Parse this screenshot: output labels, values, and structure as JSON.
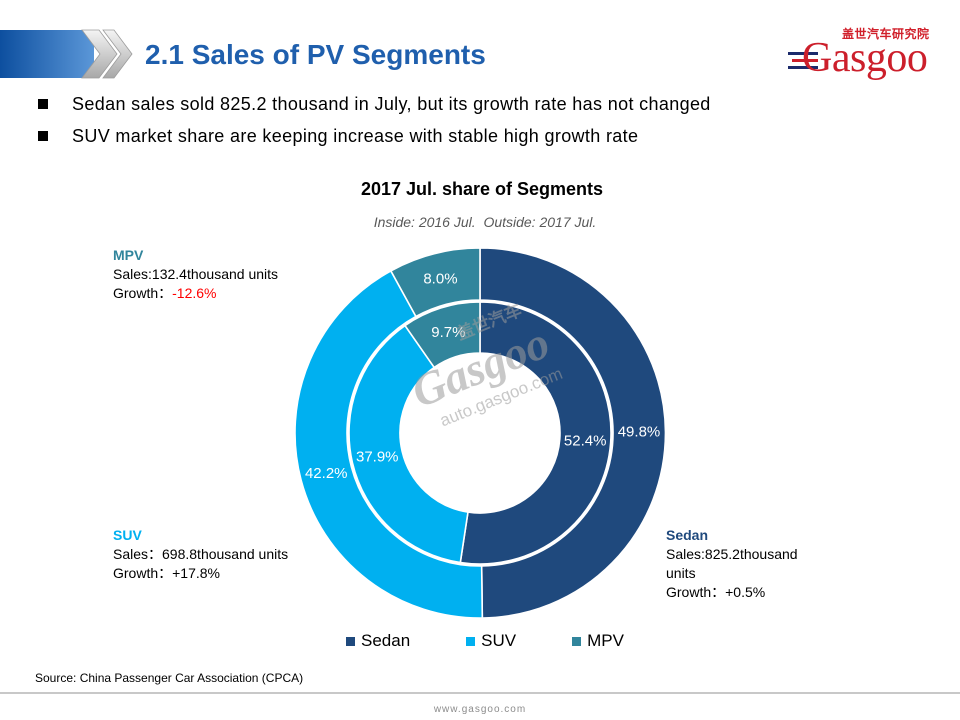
{
  "header": {
    "title": "2.1 Sales of PV Segments"
  },
  "logo": {
    "chinese": "盖世汽车研究院",
    "wordmark": "Gasgoo"
  },
  "bullets": [
    "Sedan sales sold 825.2 thousand in July, but its growth rate has not changed",
    "SUV market share are keeping increase with stable high growth rate"
  ],
  "chart_data": {
    "type": "pie",
    "title": "2017 Jul. share of Segments",
    "subtitle": {
      "inside_label": "Inside:",
      "outside_label": "Outside:"
    },
    "categories": [
      "Sedan",
      "SUV",
      "MPV"
    ],
    "colors": [
      "#1F497D",
      "#00B0F0",
      "#31859C"
    ],
    "series": [
      {
        "name": "2017 Jul.",
        "values": [
          49.8,
          42.2,
          8.0
        ]
      },
      {
        "name": "2016 Jul.",
        "values": [
          52.4,
          37.9,
          9.7
        ]
      }
    ],
    "legend_position": "bottom",
    "annotations": [
      {
        "category": "MPV",
        "sales": "Sales:132.4thousand units",
        "growth_label": "Growth：",
        "growth": "-12.6%",
        "growth_color": "#FF0000"
      },
      {
        "category": "SUV",
        "sales": "Sales：698.8thousand units",
        "growth_label": "Growth：",
        "growth": "+17.8%",
        "growth_color": "#000000"
      },
      {
        "category": "Sedan",
        "sales": "Sales:825.2thousand units",
        "growth_label": "Growth：",
        "growth": "+0.5%",
        "growth_color": "#000000"
      }
    ]
  },
  "watermark": {
    "chinese": "盖世汽车",
    "wordmark": "Gasgoo",
    "url": "auto.gasgoo.com"
  },
  "footer": {
    "source": "Source: China Passenger Car Association (CPCA)",
    "site": "www.gasgoo.com"
  }
}
